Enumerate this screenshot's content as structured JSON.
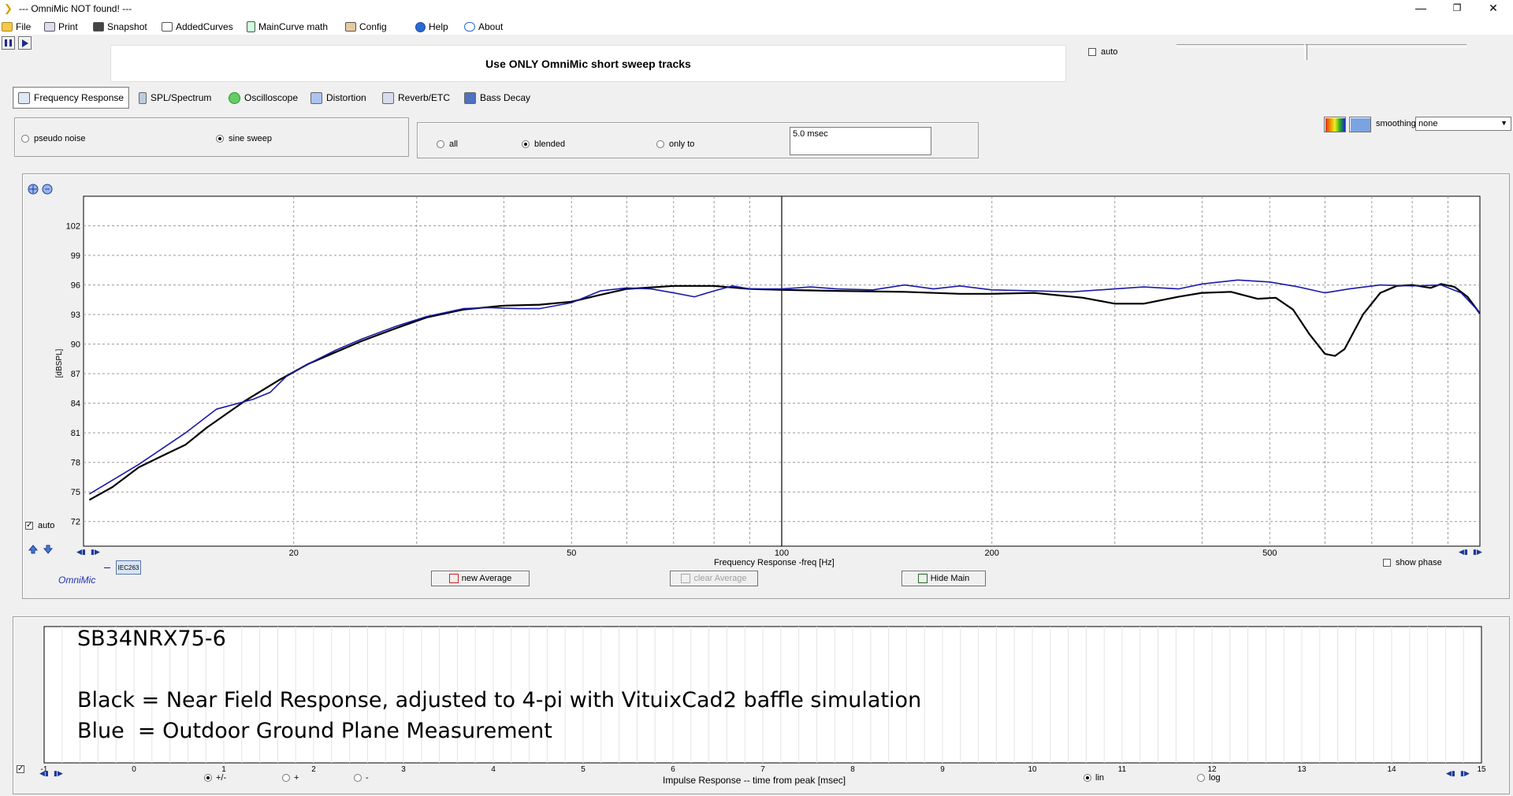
{
  "window": {
    "title": "--- OmniMic NOT found! ---",
    "minimize_glyph": "—",
    "restore_glyph": "❐",
    "close_glyph": "✕"
  },
  "menu": [
    {
      "label": "File",
      "icon": "folder-icon"
    },
    {
      "label": "Print",
      "icon": "printer-icon"
    },
    {
      "label": "Snapshot",
      "icon": "camera-icon"
    },
    {
      "label": "AddedCurves",
      "icon": "curves-icon"
    },
    {
      "label": "MainCurve math",
      "icon": "calculator-icon"
    },
    {
      "label": "Config",
      "icon": "tools-icon"
    },
    {
      "label": "Help",
      "icon": "help-icon"
    },
    {
      "label": "About",
      "icon": "speech-icon"
    }
  ],
  "banner": {
    "message": "Use ONLY OmniMic short sweep tracks"
  },
  "top_auto": {
    "label": "auto",
    "checked": false
  },
  "tabs": [
    {
      "label": "Frequency Response",
      "active": true,
      "color": "#4a6fb5"
    },
    {
      "label": "SPL/Spectrum",
      "active": false,
      "color": "#2a7a9a"
    },
    {
      "label": "Oscilloscope",
      "active": false,
      "color": "#3aa03a"
    },
    {
      "label": "Distortion",
      "active": false,
      "color": "#2050c0"
    },
    {
      "label": "Reverb/ETC",
      "active": false,
      "color": "#4060a0"
    },
    {
      "label": "Bass Decay",
      "active": false,
      "color": "#2040a0"
    }
  ],
  "signal": {
    "options": [
      "pseudo noise",
      "sine sweep"
    ],
    "selected": 1
  },
  "gating": {
    "options": [
      "all",
      "blended",
      "only to"
    ],
    "selected": 1,
    "value": "5.0 msec"
  },
  "smoothing": {
    "label": "smoothing",
    "value": "none"
  },
  "colors": {
    "black_curve": "#000000",
    "blue_curve": "#1a1aa8",
    "brand": "#2030b0"
  },
  "chart_data": {
    "type": "line",
    "xlabel": "Frequency Response -freq [Hz]",
    "ylabel": "[dBSPL]",
    "x_scale": "log",
    "xlim": [
      10,
      1000
    ],
    "ylim": [
      69.5,
      105
    ],
    "x_tick_labels": [
      {
        "value": 20,
        "label": "20"
      },
      {
        "value": 50,
        "label": "50"
      },
      {
        "value": 100,
        "label": "100"
      },
      {
        "value": 200,
        "label": "200"
      },
      {
        "value": 500,
        "label": "500"
      }
    ],
    "y_ticks": [
      72,
      75,
      78,
      81,
      84,
      87,
      90,
      93,
      96,
      99,
      102
    ],
    "grid": true,
    "marker_x": 100,
    "series": [
      {
        "color": "#000000",
        "points": [
          [
            10.2,
            74.2
          ],
          [
            11,
            75.5
          ],
          [
            12,
            77.5
          ],
          [
            13,
            78.7
          ],
          [
            14,
            79.8
          ],
          [
            15,
            81.5
          ],
          [
            17,
            84.2
          ],
          [
            19,
            86.3
          ],
          [
            21,
            88
          ],
          [
            23,
            89.2
          ],
          [
            25,
            90.3
          ],
          [
            28,
            91.6
          ],
          [
            31,
            92.7
          ],
          [
            35,
            93.5
          ],
          [
            40,
            93.9
          ],
          [
            45,
            94
          ],
          [
            50,
            94.3
          ],
          [
            55,
            95
          ],
          [
            60,
            95.6
          ],
          [
            70,
            95.9
          ],
          [
            80,
            95.9
          ],
          [
            90,
            95.6
          ],
          [
            100,
            95.5
          ],
          [
            120,
            95.4
          ],
          [
            150,
            95.3
          ],
          [
            180,
            95.1
          ],
          [
            200,
            95.1
          ],
          [
            230,
            95.2
          ],
          [
            270,
            94.7
          ],
          [
            300,
            94.1
          ],
          [
            330,
            94.1
          ],
          [
            370,
            94.8
          ],
          [
            400,
            95.2
          ],
          [
            440,
            95.3
          ],
          [
            480,
            94.6
          ],
          [
            510,
            94.7
          ],
          [
            540,
            93.5
          ],
          [
            570,
            91
          ],
          [
            600,
            89
          ],
          [
            620,
            88.8
          ],
          [
            640,
            89.5
          ],
          [
            680,
            93
          ],
          [
            720,
            95.2
          ],
          [
            760,
            95.9
          ],
          [
            800,
            96
          ],
          [
            850,
            95.7
          ],
          [
            880,
            96.1
          ],
          [
            920,
            95.8
          ],
          [
            960,
            94.8
          ],
          [
            1000,
            93.1
          ]
        ]
      },
      {
        "color": "#1a1aa8",
        "points": [
          [
            10.2,
            74.8
          ],
          [
            12,
            77.8
          ],
          [
            14,
            81
          ],
          [
            15.5,
            83.4
          ],
          [
            17.5,
            84.4
          ],
          [
            18.5,
            85.1
          ],
          [
            19.5,
            86.7
          ],
          [
            21,
            88
          ],
          [
            23,
            89.4
          ],
          [
            25,
            90.5
          ],
          [
            28,
            91.8
          ],
          [
            31,
            92.8
          ],
          [
            35,
            93.6
          ],
          [
            38,
            93.7
          ],
          [
            42,
            93.6
          ],
          [
            45,
            93.6
          ],
          [
            50,
            94.2
          ],
          [
            55,
            95.4
          ],
          [
            60,
            95.7
          ],
          [
            65,
            95.6
          ],
          [
            70,
            95.2
          ],
          [
            75,
            94.8
          ],
          [
            80,
            95.4
          ],
          [
            85,
            95.9
          ],
          [
            90,
            95.6
          ],
          [
            100,
            95.6
          ],
          [
            110,
            95.8
          ],
          [
            120,
            95.6
          ],
          [
            135,
            95.5
          ],
          [
            150,
            96
          ],
          [
            165,
            95.6
          ],
          [
            180,
            95.9
          ],
          [
            200,
            95.5
          ],
          [
            230,
            95.4
          ],
          [
            260,
            95.3
          ],
          [
            300,
            95.6
          ],
          [
            330,
            95.8
          ],
          [
            370,
            95.6
          ],
          [
            400,
            96.1
          ],
          [
            450,
            96.5
          ],
          [
            500,
            96.3
          ],
          [
            550,
            95.8
          ],
          [
            600,
            95.2
          ],
          [
            650,
            95.6
          ],
          [
            720,
            96
          ],
          [
            800,
            95.9
          ],
          [
            880,
            96
          ],
          [
            940,
            95.2
          ],
          [
            1000,
            93.2
          ]
        ]
      }
    ]
  },
  "fr_controls": {
    "auto_label": "auto",
    "auto_checked": true,
    "omnimic_label": "OmniMic",
    "iec_label": "IEC263",
    "new_average": "new Average",
    "clear_average": "clear Average",
    "hide_main": "Hide Main",
    "show_phase": "show phase"
  },
  "notes": {
    "line1": "SB34NRX75-6",
    "line2": "Black = Near Field Response, adjusted to 4-pi with VituixCad2 baffle simulation",
    "line3": "Blue  = Outdoor Ground Plane Measurement"
  },
  "impulse": {
    "xlabel": "Impulse Response  -- time from peak [msec]",
    "ticks": [
      "-1",
      "0",
      "1",
      "2",
      "3",
      "4",
      "5",
      "6",
      "7",
      "8",
      "9",
      "10",
      "11",
      "12",
      "13",
      "14",
      "15"
    ],
    "polarity_options": [
      "+/-",
      "+",
      "-"
    ],
    "polarity_selected": 0,
    "scale_options": [
      "lin",
      "log"
    ],
    "scale_selected": 0
  }
}
